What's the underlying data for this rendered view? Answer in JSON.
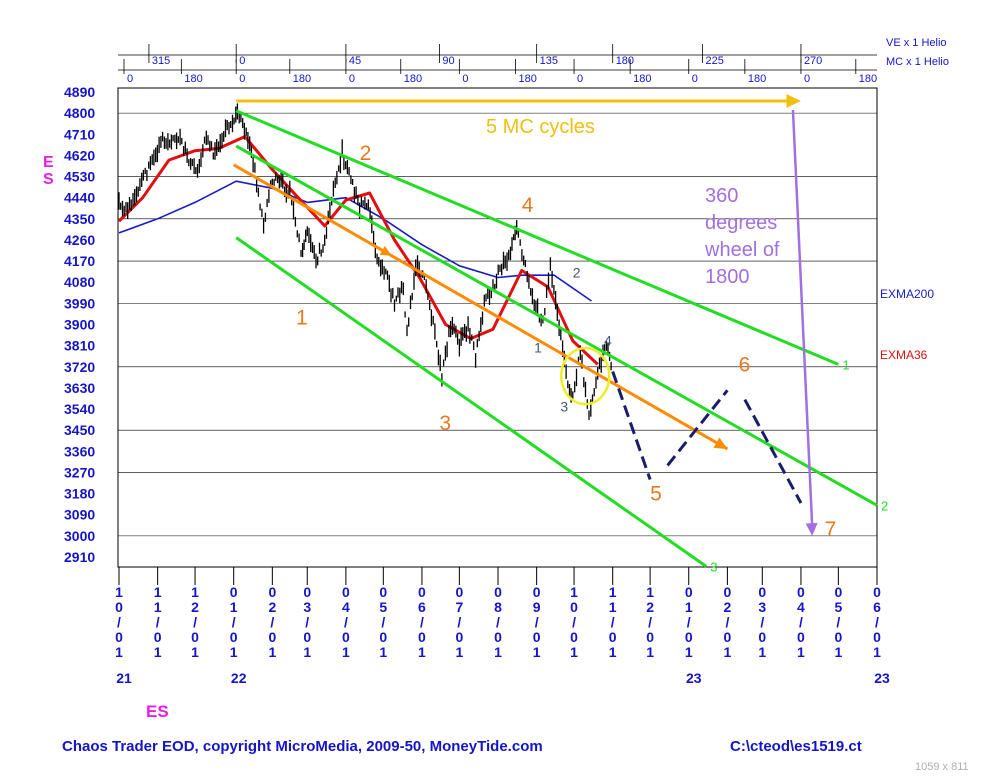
{
  "chart_data": {
    "type": "line",
    "title": "",
    "symbol_label": "ES",
    "y_axis": {
      "ticks": [
        2910,
        3000,
        3090,
        3180,
        3270,
        3360,
        3450,
        3540,
        3630,
        3720,
        3810,
        3900,
        3990,
        4080,
        4170,
        4260,
        4350,
        4440,
        4530,
        4620,
        4710,
        4800,
        4890
      ],
      "range": [
        2910,
        4890
      ]
    },
    "x_axis": {
      "start": "2021-10-01",
      "end": "2023-06-01",
      "month_ticks": [
        {
          "date": "2021-10-01",
          "label": "10/01"
        },
        {
          "date": "2021-11-01",
          "label": "11/01"
        },
        {
          "date": "2021-12-01",
          "label": "12/01"
        },
        {
          "date": "2022-01-01",
          "label": "01/01"
        },
        {
          "date": "2022-02-01",
          "label": "02/01"
        },
        {
          "date": "2022-03-01",
          "label": "03/01"
        },
        {
          "date": "2022-04-01",
          "label": "04/01"
        },
        {
          "date": "2022-05-01",
          "label": "05/01"
        },
        {
          "date": "2022-06-01",
          "label": "06/01"
        },
        {
          "date": "2022-07-01",
          "label": "07/01"
        },
        {
          "date": "2022-08-01",
          "label": "08/01"
        },
        {
          "date": "2022-09-01",
          "label": "09/01"
        },
        {
          "date": "2022-10-01",
          "label": "10/01"
        },
        {
          "date": "2022-11-01",
          "label": "11/01"
        },
        {
          "date": "2022-12-01",
          "label": "12/01"
        },
        {
          "date": "2023-01-01",
          "label": "01/01"
        },
        {
          "date": "2023-02-01",
          "label": "02/01"
        },
        {
          "date": "2023-03-01",
          "label": "03/01"
        },
        {
          "date": "2023-04-01",
          "label": "04/01"
        },
        {
          "date": "2023-05-01",
          "label": "05/01"
        },
        {
          "date": "2023-06-01",
          "label": "06/01"
        }
      ],
      "year_labels": [
        {
          "date": "2021-10-01",
          "label": "21"
        },
        {
          "date": "2022-01-01",
          "label": "22"
        },
        {
          "date": "2023-01-01",
          "label": "23"
        },
        {
          "date": "2023-06-01",
          "label": "23"
        }
      ]
    },
    "cycle_rows": [
      {
        "name": "VE x 1 Helio",
        "marks": [
          {
            "date": "2021-10-25",
            "label": "315"
          },
          {
            "date": "2022-01-03",
            "label": "0"
          },
          {
            "date": "2022-04-01",
            "label": "45"
          },
          {
            "date": "2022-06-15",
            "label": "90"
          },
          {
            "date": "2022-09-01",
            "label": "135"
          },
          {
            "date": "2022-11-01",
            "label": "180"
          },
          {
            "date": "2023-01-12",
            "label": "225"
          },
          {
            "date": "2023-04-01",
            "label": "270"
          }
        ]
      },
      {
        "name": "MC x 1 Helio",
        "marks": [
          {
            "date": "2021-10-05",
            "label": "0"
          },
          {
            "date": "2021-11-20",
            "label": "180"
          },
          {
            "date": "2022-01-03",
            "label": "0"
          },
          {
            "date": "2022-02-15",
            "label": "180"
          },
          {
            "date": "2022-04-01",
            "label": "0"
          },
          {
            "date": "2022-05-15",
            "label": "180"
          },
          {
            "date": "2022-07-01",
            "label": "0"
          },
          {
            "date": "2022-08-15",
            "label": "180"
          },
          {
            "date": "2022-10-01",
            "label": "0"
          },
          {
            "date": "2022-11-15",
            "label": "180"
          },
          {
            "date": "2023-01-01",
            "label": "0"
          },
          {
            "date": "2023-02-15",
            "label": "180"
          },
          {
            "date": "2023-04-01",
            "label": "0"
          },
          {
            "date": "2023-05-15",
            "label": "180"
          }
        ]
      }
    ],
    "price_anchors": [
      [
        "2021-10-01",
        4420
      ],
      [
        "2021-10-08",
        4380
      ],
      [
        "2021-10-15",
        4470
      ],
      [
        "2021-10-22",
        4540
      ],
      [
        "2021-10-29",
        4600
      ],
      [
        "2021-11-05",
        4690
      ],
      [
        "2021-11-12",
        4670
      ],
      [
        "2021-11-19",
        4700
      ],
      [
        "2021-11-26",
        4590
      ],
      [
        "2021-12-03",
        4540
      ],
      [
        "2021-12-10",
        4700
      ],
      [
        "2021-12-17",
        4620
      ],
      [
        "2021-12-24",
        4720
      ],
      [
        "2021-12-31",
        4770
      ],
      [
        "2022-01-04",
        4800
      ],
      [
        "2022-01-11",
        4720
      ],
      [
        "2022-01-18",
        4560
      ],
      [
        "2022-01-25",
        4320
      ],
      [
        "2022-02-01",
        4520
      ],
      [
        "2022-02-08",
        4500
      ],
      [
        "2022-02-15",
        4460
      ],
      [
        "2022-02-24",
        4210
      ],
      [
        "2022-03-01",
        4300
      ],
      [
        "2022-03-08",
        4170
      ],
      [
        "2022-03-15",
        4260
      ],
      [
        "2022-03-22",
        4460
      ],
      [
        "2022-03-29",
        4630
      ],
      [
        "2022-04-05",
        4520
      ],
      [
        "2022-04-12",
        4400
      ],
      [
        "2022-04-19",
        4430
      ],
      [
        "2022-04-26",
        4180
      ],
      [
        "2022-05-03",
        4120
      ],
      [
        "2022-05-10",
        3990
      ],
      [
        "2022-05-17",
        4060
      ],
      [
        "2022-05-20",
        3860
      ],
      [
        "2022-05-27",
        4150
      ],
      [
        "2022-06-03",
        4100
      ],
      [
        "2022-06-10",
        3900
      ],
      [
        "2022-06-17",
        3680
      ],
      [
        "2022-06-24",
        3900
      ],
      [
        "2022-07-01",
        3820
      ],
      [
        "2022-07-08",
        3890
      ],
      [
        "2022-07-14",
        3760
      ],
      [
        "2022-07-21",
        3990
      ],
      [
        "2022-07-28",
        4060
      ],
      [
        "2022-08-04",
        4150
      ],
      [
        "2022-08-11",
        4200
      ],
      [
        "2022-08-16",
        4320
      ],
      [
        "2022-08-23",
        4140
      ],
      [
        "2022-08-30",
        3990
      ],
      [
        "2022-09-06",
        3910
      ],
      [
        "2022-09-12",
        4140
      ],
      [
        "2022-09-19",
        3900
      ],
      [
        "2022-09-26",
        3650
      ],
      [
        "2022-09-30",
        3590
      ],
      [
        "2022-10-06",
        3780
      ],
      [
        "2022-10-13",
        3500
      ],
      [
        "2022-10-20",
        3700
      ],
      [
        "2022-10-27",
        3800
      ],
      [
        "2022-11-01",
        3720
      ]
    ],
    "series": [
      {
        "name": "EXMA200",
        "color": "#1a1ac8",
        "points": [
          [
            "2021-10-01",
            4290
          ],
          [
            "2021-11-01",
            4350
          ],
          [
            "2021-12-01",
            4420
          ],
          [
            "2022-01-03",
            4510
          ],
          [
            "2022-02-01",
            4480
          ],
          [
            "2022-03-01",
            4420
          ],
          [
            "2022-04-01",
            4440
          ],
          [
            "2022-05-01",
            4350
          ],
          [
            "2022-06-01",
            4240
          ],
          [
            "2022-07-01",
            4150
          ],
          [
            "2022-08-01",
            4100
          ],
          [
            "2022-08-20",
            4110
          ],
          [
            "2022-09-15",
            4110
          ],
          [
            "2022-10-15",
            4000
          ]
        ]
      },
      {
        "name": "EXMA36",
        "color": "#e01010",
        "points": [
          [
            "2021-10-01",
            4340
          ],
          [
            "2021-10-20",
            4440
          ],
          [
            "2021-11-10",
            4600
          ],
          [
            "2021-12-01",
            4640
          ],
          [
            "2021-12-20",
            4650
          ],
          [
            "2022-01-10",
            4700
          ],
          [
            "2022-02-01",
            4560
          ],
          [
            "2022-02-20",
            4450
          ],
          [
            "2022-03-15",
            4320
          ],
          [
            "2022-04-01",
            4430
          ],
          [
            "2022-04-20",
            4460
          ],
          [
            "2022-05-10",
            4260
          ],
          [
            "2022-05-30",
            4100
          ],
          [
            "2022-06-20",
            3900
          ],
          [
            "2022-07-10",
            3840
          ],
          [
            "2022-07-28",
            3880
          ],
          [
            "2022-08-20",
            4130
          ],
          [
            "2022-09-10",
            4060
          ],
          [
            "2022-09-30",
            3830
          ],
          [
            "2022-10-20",
            3730
          ]
        ]
      }
    ],
    "channels": [
      {
        "label": "1",
        "points": [
          [
            "2022-01-03",
            4810
          ],
          [
            "2023-05-01",
            3730
          ]
        ]
      },
      {
        "label": "2",
        "points": [
          [
            "2022-01-03",
            4660
          ],
          [
            "2023-06-01",
            3130
          ]
        ]
      },
      {
        "label": "3",
        "points": [
          [
            "2022-01-03",
            4270
          ],
          [
            "2023-01-15",
            2870
          ]
        ]
      }
    ],
    "trend_line": {
      "points": [
        [
          "2022-01-01",
          4580
        ],
        [
          "2023-02-01",
          3370
        ]
      ]
    },
    "projection_path": [
      [
        "2022-11-01",
        3700
      ],
      [
        "2022-12-01",
        3240
      ],
      [
        "2022-12-15",
        3300
      ],
      [
        "2023-02-01",
        3620
      ],
      [
        "2023-02-15",
        3580
      ],
      [
        "2023-04-01",
        3140
      ]
    ],
    "top_arrow": {
      "label": "5 MC cycles",
      "from": [
        "2022-01-03",
        4870
      ],
      "to": [
        "2023-04-01",
        4870
      ]
    },
    "wheel_arrow": {
      "label_lines": [
        "360",
        "degrees",
        "wheel of",
        "1800"
      ],
      "from": [
        "2023-04-01",
        4830
      ],
      "to": [
        "2023-04-10",
        3000
      ]
    },
    "orange_labels": [
      {
        "label": "1",
        "at": [
          "2022-02-20",
          3900
        ]
      },
      {
        "label": "2",
        "at": [
          "2022-04-12",
          4600
        ]
      },
      {
        "label": "3",
        "at": [
          "2022-06-15",
          3450
        ]
      },
      {
        "label": "4",
        "at": [
          "2022-08-20",
          4380
        ]
      },
      {
        "label": "5",
        "at": [
          "2022-12-01",
          3150
        ]
      },
      {
        "label": "6",
        "at": [
          "2023-02-10",
          3700
        ]
      },
      {
        "label": "7",
        "at": [
          "2023-04-20",
          3000
        ]
      }
    ],
    "wave_labels": [
      {
        "label": "1",
        "at": [
          "2022-08-30",
          3780
        ]
      },
      {
        "label": "2",
        "at": [
          "2022-09-30",
          4100
        ]
      },
      {
        "label": "3",
        "at": [
          "2022-09-20",
          3530
        ]
      },
      {
        "label": "4",
        "at": [
          "2022-10-25",
          3810
        ]
      }
    ],
    "ellipse_marker": {
      "center": [
        "2022-10-10",
        3680
      ]
    },
    "legend": [
      {
        "name": "EXMA200",
        "color": "#1a1ac8"
      },
      {
        "name": "EXMA36",
        "color": "#e01010"
      }
    ],
    "colors": {
      "price": "#000000",
      "channel": "#22dd22",
      "trend": "#ff8c00",
      "projection": "#1c1c6c",
      "top_arrow": "#f0c010",
      "wheel_arrow": "#a070e0",
      "axis_text": "#1515c8",
      "orange_label": "#e87a1e",
      "wave_label": "#445577",
      "ellipse": "#eeee22",
      "title_label": "#e81ee8",
      "grid": "#000000"
    }
  },
  "footer": {
    "left": "Chaos Trader EOD, copyright MicroMedia, 2009-50, MoneyTide.com",
    "right": "C:\\cteod\\es1519.ct",
    "dims": "1059 x 811"
  }
}
